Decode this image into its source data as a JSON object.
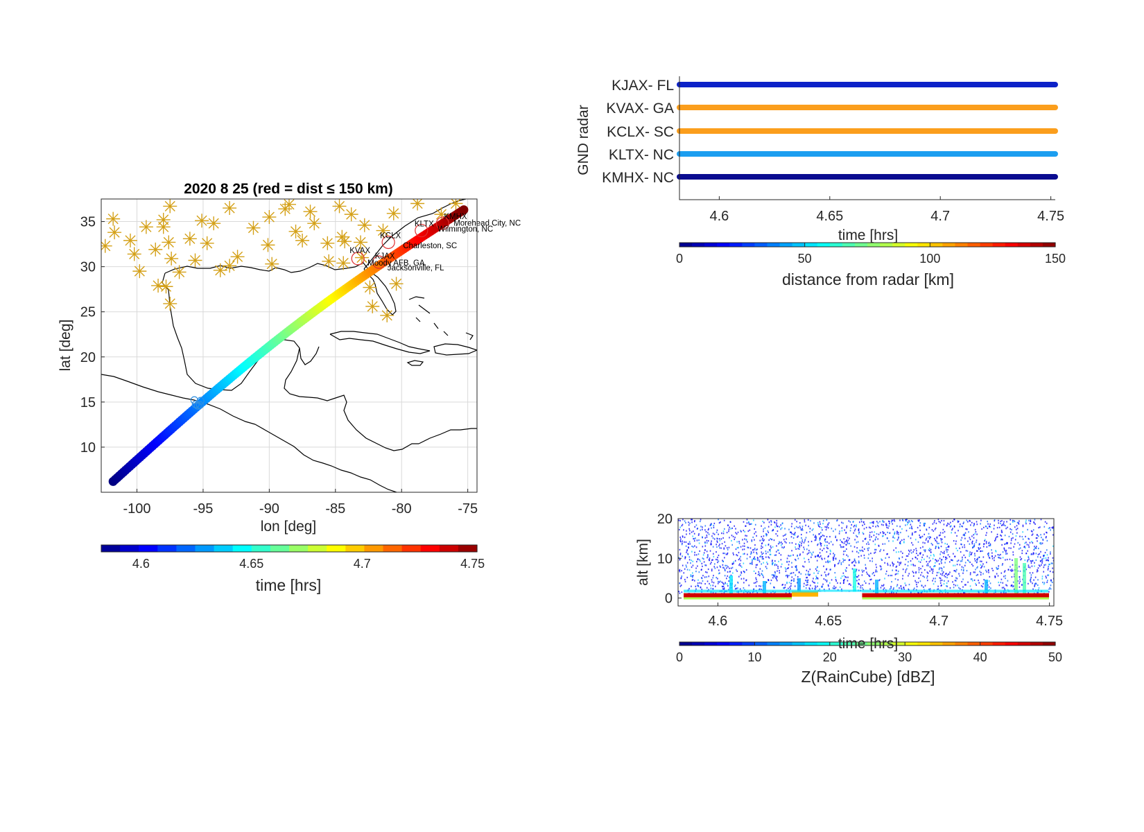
{
  "colors": {
    "axis": "#262626",
    "grid": "#d9d9d9",
    "coast": "#000000",
    "radar_station": "#d4a017",
    "near_radar_circle": "#e03030",
    "overlap_marker": "#2f8fe0"
  },
  "map_panel": {
    "title": "2020     8     25  (red = dist ≤ 150 km)",
    "xlabel": "lon  [deg]",
    "ylabel": "lat  [deg]",
    "xticks": [
      "-100",
      "-95",
      "-90",
      "-85",
      "-80",
      "-75"
    ],
    "yticks": [
      "10",
      "15",
      "20",
      "25",
      "30",
      "35"
    ],
    "colorbar_label": "time  [hrs]",
    "colorbar_ticks": [
      "4.6",
      "4.65",
      "4.7",
      "4.75"
    ],
    "station_labels": [
      {
        "text": "KMHX",
        "lon": -76.9,
        "lat": 34.8
      },
      {
        "text": "KLTX",
        "lon": -78.5,
        "lat": 34.0
      },
      {
        "text": "Morehead City, NC",
        "lon": -76.7,
        "lat": 34.7
      },
      {
        "text": "Wilmington, NC",
        "lon": -77.9,
        "lat": 34.2
      },
      {
        "text": "KCLX",
        "lon": -81.0,
        "lat": 32.7
      },
      {
        "text": "Charleston, SC",
        "lon": -80.0,
        "lat": 32.8
      },
      {
        "text": "KVAX",
        "lon": -83.3,
        "lat": 30.9
      },
      {
        "text": "KJAX",
        "lon": -81.7,
        "lat": 30.5
      },
      {
        "text": "Moody AFB, GA",
        "lon": -83.2,
        "lat": 30.9
      },
      {
        "text": "Jacksonville, FL",
        "lon": -81.7,
        "lat": 30.5
      }
    ]
  },
  "radar_panel": {
    "ylabel": "GND radar",
    "xlabel": "time [hrs]",
    "xticks": [
      "4.6",
      "4.65",
      "4.7",
      "4.75"
    ],
    "rows": [
      {
        "label": "KJAX-  FL",
        "color": "#0c22c8"
      },
      {
        "label": "KVAX-  GA",
        "color": "#fb9e1c"
      },
      {
        "label": "KCLX-  SC",
        "color": "#fb9e1c"
      },
      {
        "label": "KLTX-  NC",
        "color": "#1c9ef0"
      },
      {
        "label": "KMHX-  NC",
        "color": "#0a0c90"
      }
    ],
    "colorbar_label": "distance from radar [km]",
    "colorbar_ticks": [
      "0",
      "50",
      "100",
      "150"
    ]
  },
  "raincube_panel": {
    "ylabel": "alt [km]",
    "xlabel": "time [hrs]",
    "xticks": [
      "4.6",
      "4.65",
      "4.7",
      "4.75"
    ],
    "yticks": [
      "0",
      "10",
      "20"
    ],
    "colorbar_label": "Z(RainCube) [dBZ]",
    "colorbar_ticks": [
      "0",
      "10",
      "20",
      "30",
      "40",
      "50"
    ]
  },
  "chart_data": [
    {
      "type": "scatter",
      "description_key": "satellite ground track colored by time",
      "x_name": "lon",
      "y_name": "lat",
      "track": {
        "lon_start": -101.8,
        "lat_start": 6.2,
        "lon_end": -75.3,
        "lat_end": 36.3,
        "time_start": 4.582,
        "time_end": 4.752
      },
      "xlim": [
        -102.7,
        -74.3
      ],
      "ylim": [
        5,
        37.5
      ],
      "colorbar_range": [
        4.582,
        4.752
      ],
      "radar_stations": [
        [
          -101.8,
          35.3
        ],
        [
          -101.7,
          33.8
        ],
        [
          -102.4,
          32.3
        ],
        [
          -100.2,
          31.4
        ],
        [
          -99.8,
          29.5
        ],
        [
          -98.6,
          31.9
        ],
        [
          -98.0,
          35.2
        ],
        [
          -98.0,
          34.4
        ],
        [
          -97.6,
          32.7
        ],
        [
          -97.4,
          30.9
        ],
        [
          -96.0,
          33.1
        ],
        [
          -95.6,
          30.7
        ],
        [
          -95.1,
          35.1
        ],
        [
          -94.7,
          32.6
        ],
        [
          -94.2,
          34.8
        ],
        [
          -93.7,
          29.6
        ],
        [
          -92.4,
          31.1
        ],
        [
          -91.2,
          34.3
        ],
        [
          -90.1,
          32.4
        ],
        [
          -90.0,
          35.5
        ],
        [
          -89.8,
          30.3
        ],
        [
          -88.8,
          36.4
        ],
        [
          -88.0,
          33.9
        ],
        [
          -87.5,
          32.9
        ],
        [
          -86.9,
          36.1
        ],
        [
          -86.6,
          34.8
        ],
        [
          -85.6,
          32.6
        ],
        [
          -85.5,
          30.6
        ],
        [
          -84.5,
          33.3
        ],
        [
          -83.8,
          35.8
        ],
        [
          -83.1,
          32.7
        ],
        [
          -82.8,
          34.6
        ],
        [
          -81.4,
          34.0
        ],
        [
          -80.6,
          35.9
        ],
        [
          -80.4,
          28.1
        ],
        [
          -82.2,
          25.6
        ],
        [
          -81.1,
          24.6
        ],
        [
          -77.0,
          35.8
        ],
        [
          -75.9,
          37.0
        ],
        [
          -78.8,
          37.0
        ],
        [
          -84.7,
          36.7
        ],
        [
          -88.5,
          36.9
        ],
        [
          -93.0,
          36.5
        ],
        [
          -97.5,
          36.7
        ],
        [
          -97.8,
          27.8
        ],
        [
          -97.5,
          25.9
        ],
        [
          -96.8,
          29.4
        ],
        [
          -100.5,
          32.9
        ],
        [
          -99.3,
          34.4
        ],
        [
          -98.4,
          27.9
        ],
        [
          -93.0,
          30.1
        ],
        [
          -84.4,
          30.4
        ],
        [
          -82.4,
          27.7
        ],
        [
          -84.3,
          32.8
        ],
        [
          -83.0,
          31.0
        ]
      ],
      "near_radars_circles": [
        [
          -76.9,
          34.8
        ],
        [
          -78.5,
          34.0
        ],
        [
          -81.0,
          32.7
        ],
        [
          -83.3,
          30.9
        ],
        [
          -81.7,
          30.5
        ]
      ],
      "overlap_marker": [
        -95.4,
        14.9
      ]
    },
    {
      "type": "scatter",
      "description_key": "ground radar availability vs time",
      "x_name": "time [hrs]",
      "xlim": [
        4.582,
        4.752
      ],
      "series": [
        {
          "name": "KJAX-  FL",
          "x_range": [
            4.582,
            4.752
          ],
          "distance_km": 20
        },
        {
          "name": "KVAX-  GA",
          "x_range": [
            4.582,
            4.752
          ],
          "distance_km": 122
        },
        {
          "name": "KCLX-  SC",
          "x_range": [
            4.582,
            4.752
          ],
          "distance_km": 122
        },
        {
          "name": "KLTX-  NC",
          "x_range": [
            4.582,
            4.752
          ],
          "distance_km": 55
        },
        {
          "name": "KMHX-  NC",
          "x_range": [
            4.582,
            4.752
          ],
          "distance_km": 8
        }
      ],
      "colorbar_range": [
        0,
        150
      ]
    },
    {
      "type": "heatmap",
      "description_key": "RainCube reflectivity curtain",
      "xlim": [
        4.582,
        4.752
      ],
      "ylim": [
        -2,
        20
      ],
      "colorbar_range": [
        0,
        50
      ],
      "surface_band_dbz": 46,
      "gap_time_range": [
        4.646,
        4.664
      ]
    }
  ]
}
